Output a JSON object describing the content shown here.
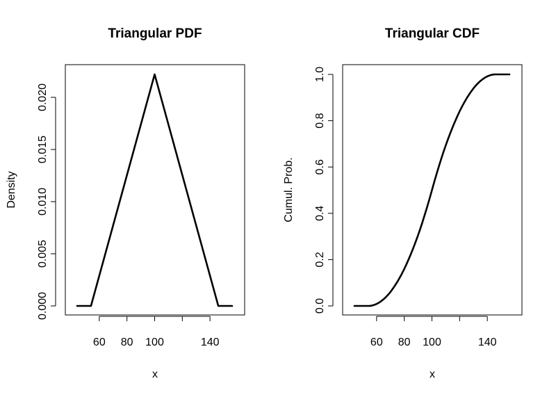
{
  "chart_data": [
    {
      "type": "line",
      "title": "Triangular PDF",
      "xlabel": "x",
      "ylabel": "Density",
      "xlim": [
        40,
        160
      ],
      "ylim": [
        0,
        0.0222
      ],
      "xticks": [
        60,
        80,
        100,
        120,
        140
      ],
      "xtick_labels": [
        "60",
        "80",
        "100",
        "",
        "140"
      ],
      "yticks": [
        0.0,
        0.005,
        0.01,
        0.015,
        0.02
      ],
      "ytick_labels": [
        "0.000",
        "0.005",
        "0.010",
        "0.015",
        "0.020"
      ],
      "series": [
        {
          "x": [
            44,
            54,
            100,
            146,
            156
          ],
          "y": [
            0,
            0,
            0.0222,
            0,
            0
          ]
        }
      ]
    },
    {
      "type": "line",
      "title": "Triangular CDF",
      "xlabel": "x",
      "ylabel": "Cumul. Prob.",
      "xlim": [
        40,
        160
      ],
      "ylim": [
        0,
        1
      ],
      "xticks": [
        60,
        80,
        100,
        120,
        140
      ],
      "xtick_labels": [
        "60",
        "80",
        "100",
        "",
        "140"
      ],
      "yticks": [
        0.0,
        0.2,
        0.4,
        0.6,
        0.8,
        1.0
      ],
      "ytick_labels": [
        "0.0",
        "0.2",
        "0.4",
        "0.6",
        "0.8",
        "1.0"
      ],
      "series": [
        {
          "x": [
            44,
            54,
            60,
            70,
            80,
            90,
            100,
            110,
            120,
            130,
            140,
            146,
            156
          ],
          "y": [
            0,
            0,
            0.017,
            0.1,
            0.237,
            0.433,
            0.5,
            0.669,
            0.811,
            0.924,
            0.983,
            1,
            1
          ]
        }
      ]
    }
  ]
}
